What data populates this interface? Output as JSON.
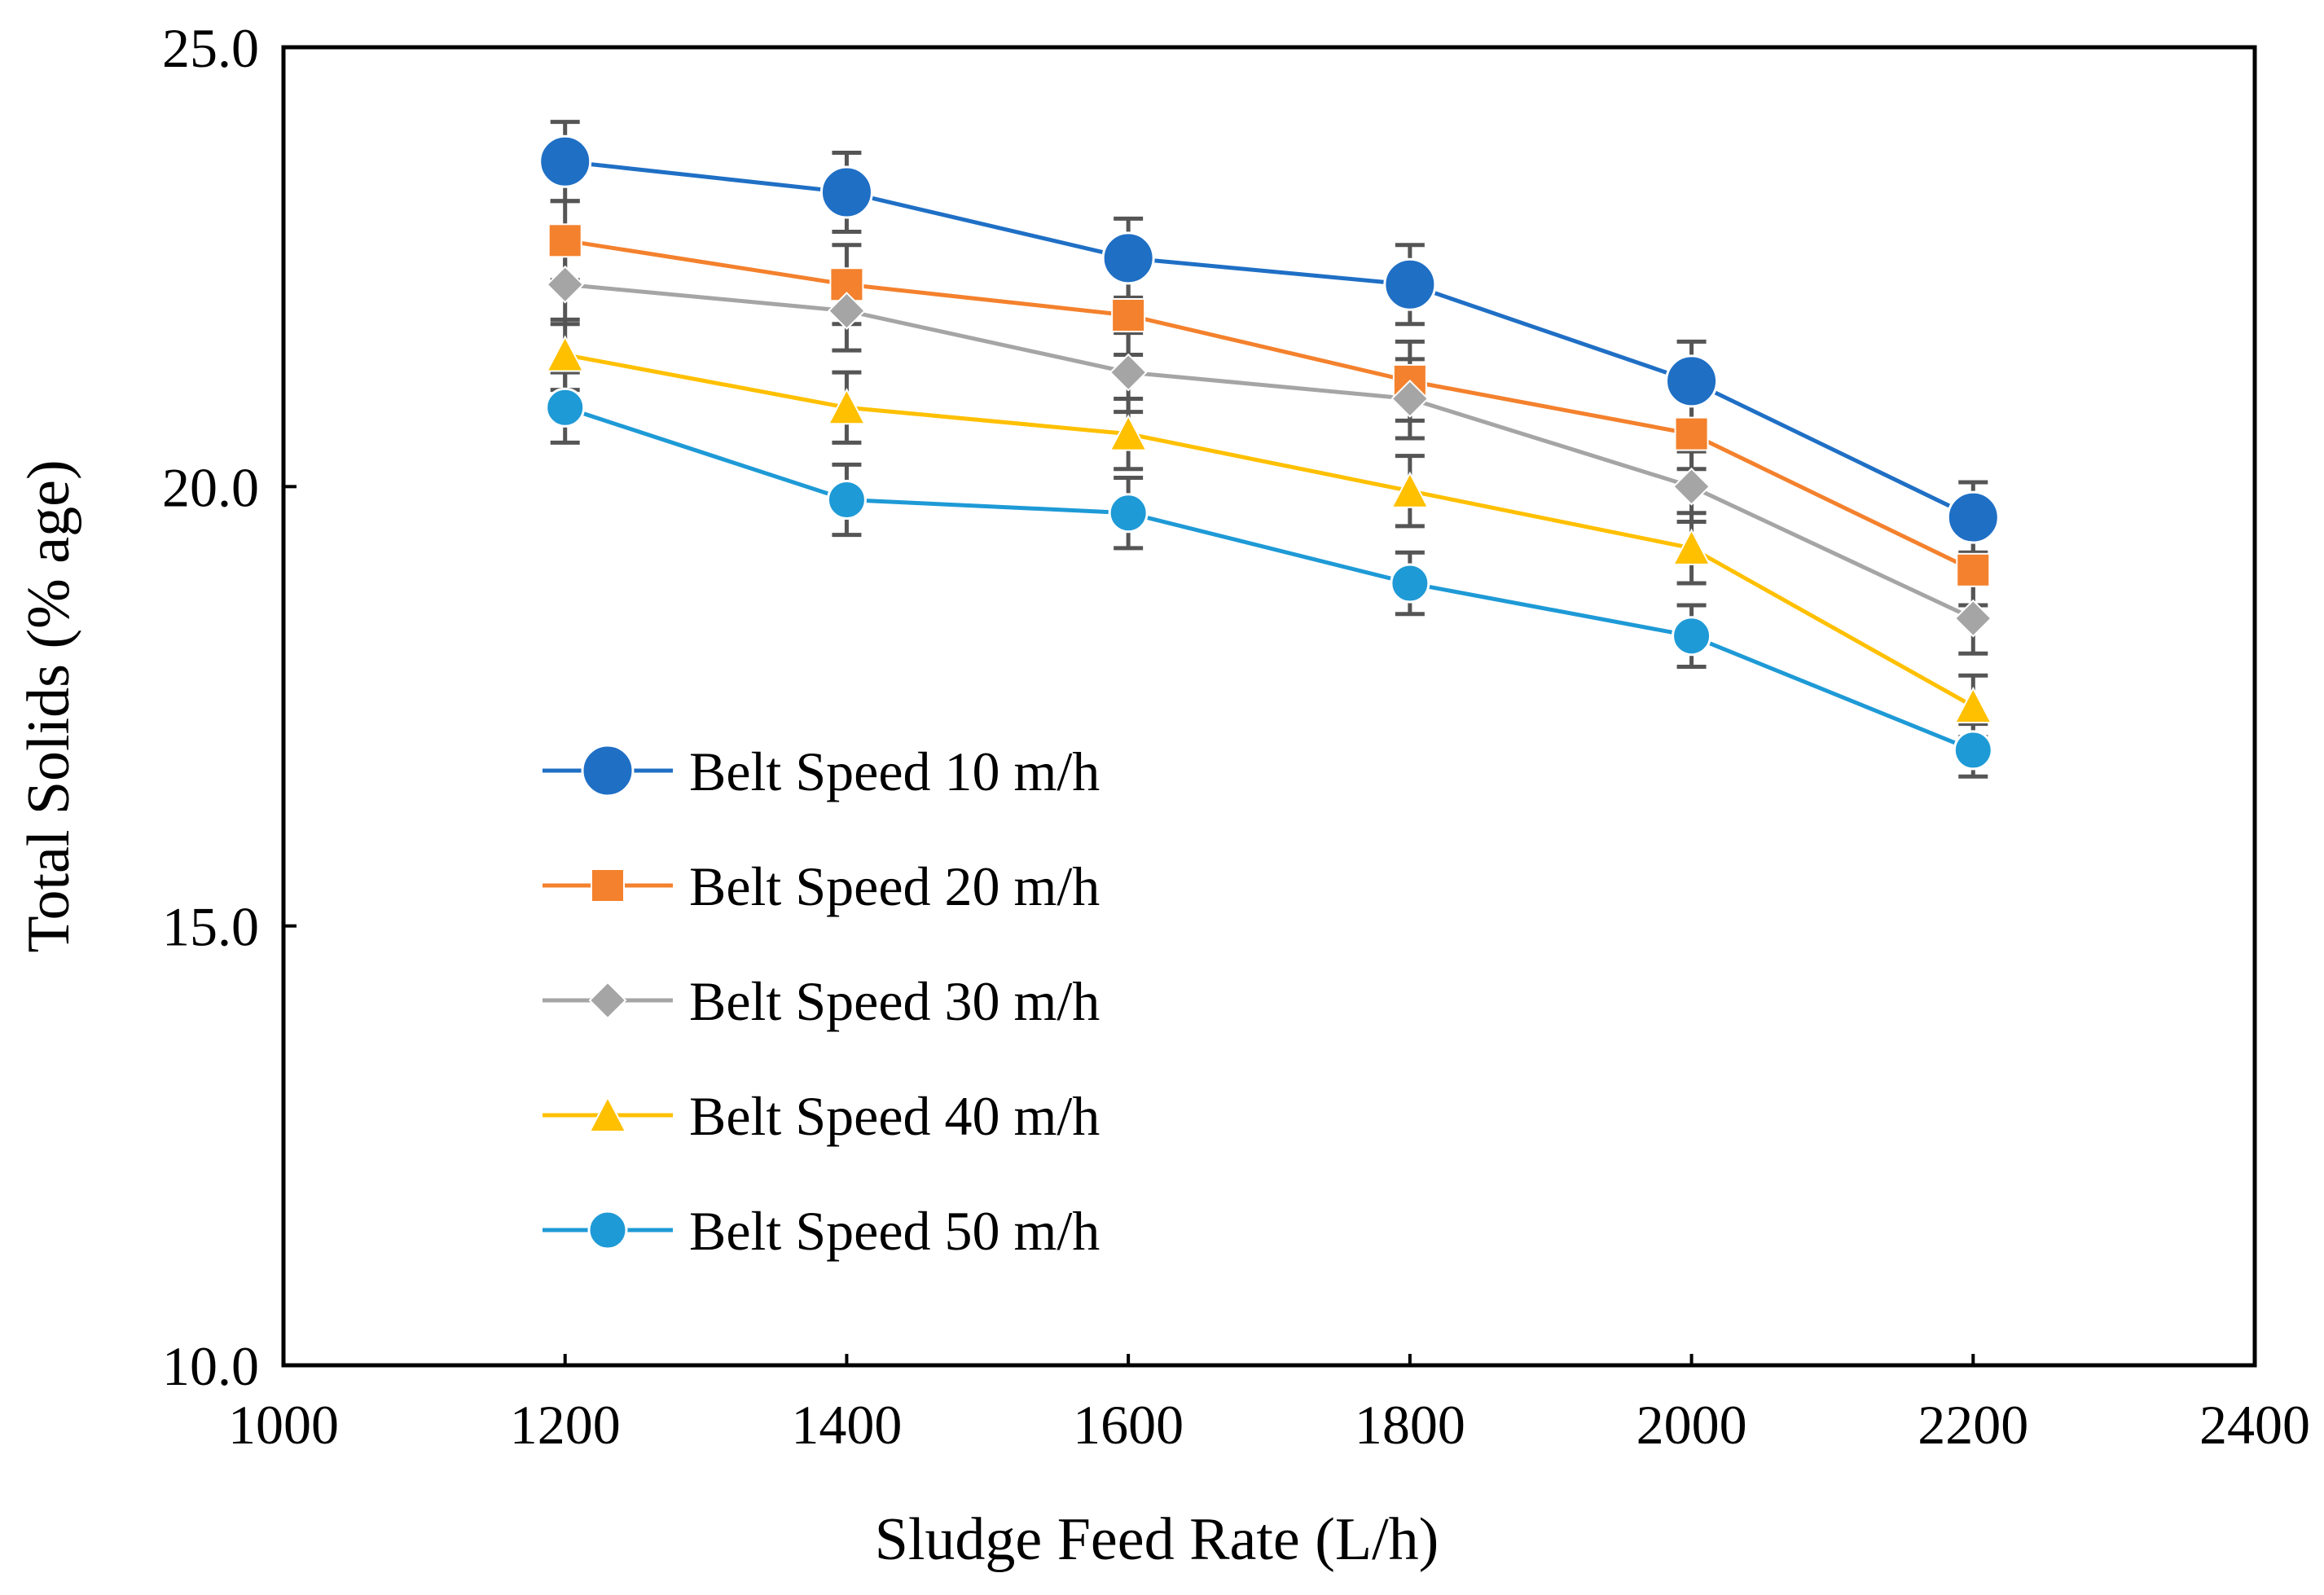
{
  "chart_data": {
    "type": "line",
    "title": "",
    "xlabel": "Sludge Feed Rate (L/h)",
    "ylabel": "Total Solids (% age)",
    "xlim": [
      1000,
      2400
    ],
    "ylim": [
      10.0,
      25.0
    ],
    "xticks": [
      "1000",
      "1200",
      "1400",
      "1600",
      "1800",
      "2000",
      "2200",
      "2400"
    ],
    "yticks": [
      "10.0",
      "15.0",
      "20.0",
      "25.0"
    ],
    "x": [
      1200,
      1400,
      1600,
      1800,
      2000,
      2200
    ],
    "legend_position": "center-left",
    "grid": false,
    "series": [
      {
        "name": "Belt Speed 10 m/h",
        "color": "#1F6FC5",
        "marker": "circle-large",
        "values": [
          23.7,
          23.35,
          22.6,
          22.3,
          21.2,
          19.65
        ],
        "error": [
          0.45,
          0.45,
          0.45,
          0.45,
          0.45,
          0.4
        ]
      },
      {
        "name": "Belt Speed 20 m/h",
        "color": "#F4812D",
        "marker": "square",
        "values": [
          22.8,
          22.3,
          21.95,
          21.2,
          20.6,
          19.05
        ],
        "error": [
          0.45,
          0.45,
          0.45,
          0.45,
          0.4,
          0.4
        ]
      },
      {
        "name": "Belt Speed 30 m/h",
        "color": "#A5A5A5",
        "marker": "diamond",
        "values": [
          22.3,
          22.0,
          21.3,
          21.0,
          20.0,
          18.5
        ],
        "error": [
          0.45,
          0.45,
          0.45,
          0.45,
          0.4,
          0.4
        ]
      },
      {
        "name": "Belt Speed 40 m/h",
        "color": "#FFC000",
        "marker": "triangle",
        "values": [
          21.5,
          20.9,
          20.6,
          19.95,
          19.3,
          17.5
        ],
        "error": [
          0.4,
          0.4,
          0.4,
          0.4,
          0.4,
          0.35
        ]
      },
      {
        "name": "Belt Speed 50 m/h",
        "color": "#1E9AD6",
        "marker": "circle",
        "values": [
          20.9,
          19.85,
          19.7,
          18.9,
          18.3,
          17.0
        ],
        "error": [
          0.4,
          0.4,
          0.4,
          0.35,
          0.35,
          0.3
        ]
      }
    ]
  }
}
